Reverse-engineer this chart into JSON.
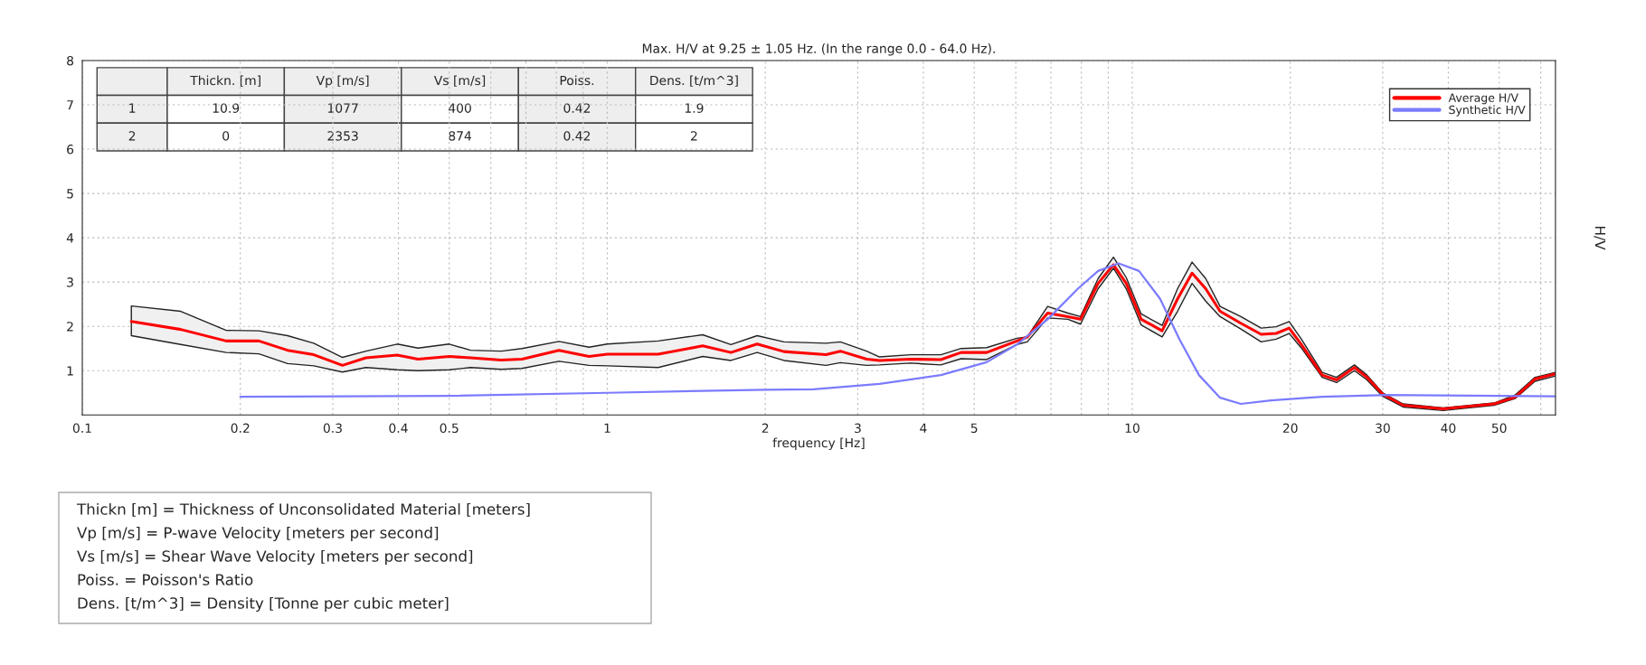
{
  "chart_data": {
    "type": "line",
    "title": "Max. H/V at 9.25 ± 1.05 Hz. (In the range 0.0 - 64.0 Hz).",
    "xlabel": "frequency [Hz]",
    "ylabel": "H/V",
    "log": "x",
    "xlim": [
      0.1,
      64
    ],
    "ylim": [
      0,
      8
    ],
    "xticks": [
      0.1,
      0.2,
      0.3,
      0.4,
      0.5,
      {
        "value": 0.6,
        "label": null
      },
      {
        "value": 0.7,
        "label": null
      },
      {
        "value": 0.8,
        "label": null
      },
      {
        "value": 0.9,
        "label": null
      },
      1,
      2,
      3,
      4,
      5,
      {
        "value": 6,
        "label": null
      },
      {
        "value": 7,
        "label": null
      },
      {
        "value": 8,
        "label": null
      },
      {
        "value": 9,
        "label": null
      },
      10,
      20,
      30,
      40,
      50,
      {
        "value": 60,
        "label": null
      }
    ],
    "yticks": [
      1,
      2,
      3,
      4,
      5,
      6,
      7,
      8
    ],
    "grid": true,
    "legend": "top right",
    "line_style": "solid",
    "marker": "none",
    "series": [
      {
        "name": "Average H/V",
        "color": "#ff0000",
        "x": [
          0.124,
          0.154,
          0.188,
          0.217,
          0.246,
          0.276,
          0.313,
          0.347,
          0.398,
          0.436,
          0.5,
          0.549,
          0.628,
          0.688,
          0.809,
          0.923,
          1.0,
          1.25,
          1.52,
          1.72,
          1.93,
          2.17,
          2.61,
          2.78,
          3.12,
          3.3,
          3.78,
          4.32,
          4.72,
          5.28,
          6.03,
          6.31,
          6.9,
          7.54,
          7.97,
          8.61,
          9.21,
          9.74,
          10.4,
          11.4,
          12.2,
          13.0,
          13.8,
          14.7,
          16.1,
          17.6,
          18.8,
          19.9,
          21.0,
          23.0,
          24.5,
          26.5,
          28.0,
          30.0,
          32.8,
          39.1,
          48.9,
          53.6,
          58.5,
          64
        ],
        "values": [
          2.11,
          1.93,
          1.67,
          1.67,
          1.46,
          1.36,
          1.12,
          1.29,
          1.35,
          1.26,
          1.32,
          1.29,
          1.24,
          1.26,
          1.46,
          1.32,
          1.37,
          1.37,
          1.56,
          1.41,
          1.6,
          1.43,
          1.36,
          1.44,
          1.26,
          1.23,
          1.26,
          1.25,
          1.41,
          1.41,
          1.67,
          1.76,
          2.3,
          2.22,
          2.16,
          2.97,
          3.39,
          2.97,
          2.16,
          1.9,
          2.62,
          3.2,
          2.85,
          2.34,
          2.07,
          1.82,
          1.84,
          1.96,
          1.59,
          0.9,
          0.79,
          1.07,
          0.85,
          0.47,
          0.22,
          0.14,
          0.25,
          0.4,
          0.81,
          0.93
        ],
        "upper": [
          2.46,
          2.34,
          1.91,
          1.9,
          1.79,
          1.62,
          1.3,
          1.44,
          1.6,
          1.51,
          1.6,
          1.46,
          1.44,
          1.5,
          1.66,
          1.53,
          1.6,
          1.67,
          1.81,
          1.59,
          1.79,
          1.65,
          1.62,
          1.65,
          1.44,
          1.31,
          1.36,
          1.36,
          1.5,
          1.52,
          1.73,
          1.76,
          2.45,
          2.3,
          2.22,
          3.08,
          3.56,
          3.1,
          2.28,
          2.02,
          2.85,
          3.45,
          3.08,
          2.45,
          2.22,
          1.96,
          1.99,
          2.11,
          1.71,
          0.96,
          0.85,
          1.13,
          0.9,
          0.5,
          0.25,
          0.16,
          0.27,
          0.45,
          0.85,
          0.96
        ],
        "lower": [
          1.79,
          1.59,
          1.41,
          1.38,
          1.16,
          1.11,
          0.97,
          1.07,
          1.02,
          1.0,
          1.02,
          1.07,
          1.03,
          1.05,
          1.21,
          1.12,
          1.11,
          1.07,
          1.32,
          1.23,
          1.41,
          1.23,
          1.12,
          1.18,
          1.12,
          1.13,
          1.17,
          1.13,
          1.27,
          1.25,
          1.59,
          1.65,
          2.19,
          2.16,
          2.05,
          2.85,
          3.31,
          2.85,
          2.03,
          1.76,
          2.34,
          2.97,
          2.57,
          2.22,
          1.94,
          1.65,
          1.71,
          1.84,
          1.51,
          0.85,
          0.73,
          1.0,
          0.79,
          0.42,
          0.18,
          0.1,
          0.22,
          0.37,
          0.76,
          0.88
        ]
      },
      {
        "name": "Synthetic H/V",
        "color": "#7b7bff",
        "x": [
          0.2,
          0.5,
          1.0,
          2.0,
          2.47,
          3.3,
          4.32,
          5.28,
          6.03,
          6.9,
          7.88,
          8.61,
          9.42,
          10.3,
          11.3,
          12.3,
          13.4,
          14.7,
          16.1,
          18.4,
          23.0,
          30.0,
          64
        ],
        "values": [
          0.41,
          0.43,
          0.5,
          0.57,
          0.58,
          0.7,
          0.9,
          1.19,
          1.59,
          2.16,
          2.85,
          3.25,
          3.42,
          3.25,
          2.62,
          1.71,
          0.9,
          0.39,
          0.25,
          0.33,
          0.41,
          0.45,
          0.42
        ]
      }
    ],
    "annotations": [
      "Thickn. [m]",
      "Vp [m/s]",
      "Vs [m/s]",
      "Poiss.",
      "Dens. [t/m^3]",
      "1",
      "10.9",
      "1077",
      "400",
      "0.42",
      "1.9",
      "2",
      "0",
      "2353",
      "874",
      "0.42",
      "2",
      "Thickn [m] = Thickness of Unconsolidated Material [meters]",
      "Vp [m/s] = P-wave Velocity [meters per second]",
      "Vs [m/s] = Shear Wave Velocity [meters per second]",
      "Poiss. = Poisson's Ratio",
      "Dens. [t/m^3] = Density [Tonne per cubic meter]"
    ]
  }
}
